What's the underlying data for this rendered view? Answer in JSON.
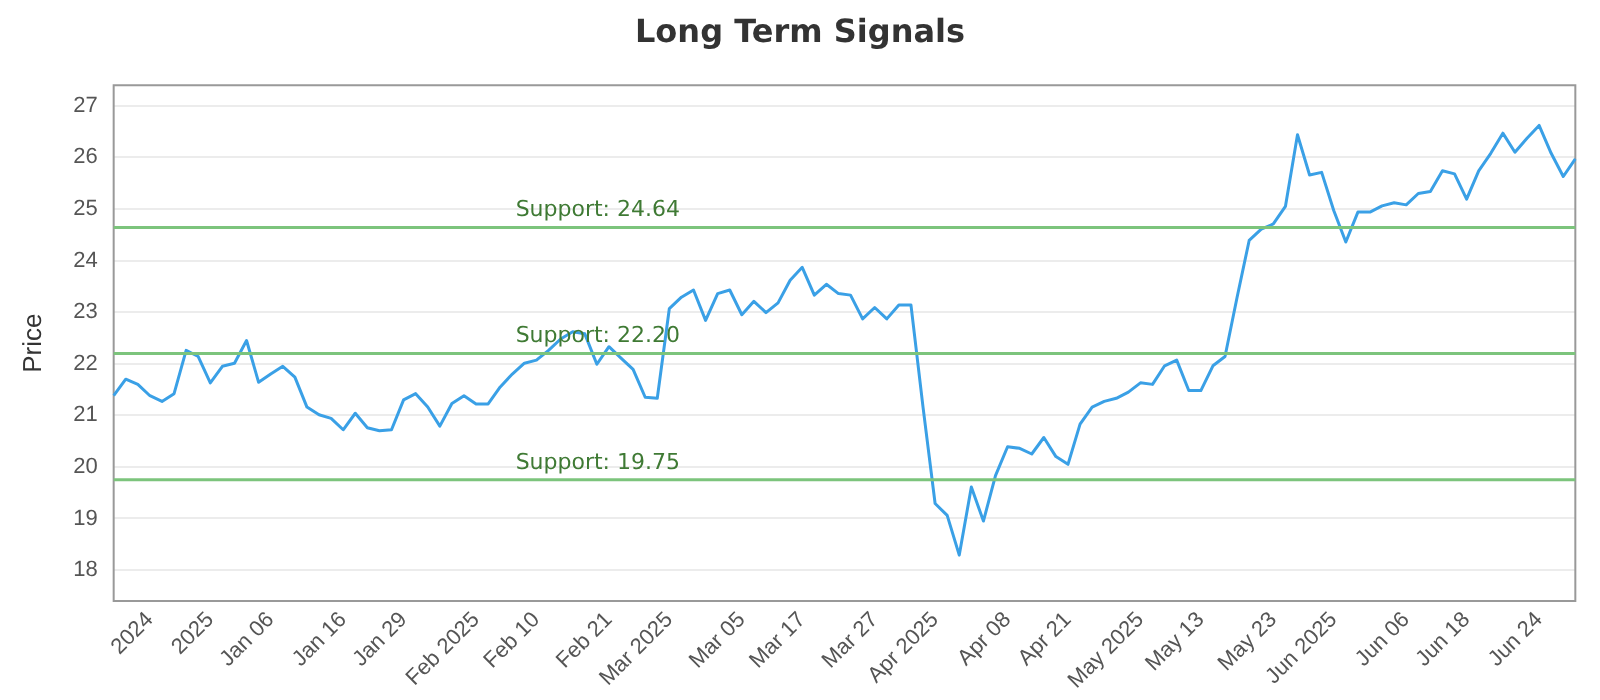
{
  "chart_data": {
    "type": "line",
    "title": "Long Term Signals",
    "ylabel": "Price",
    "categories": [
      null,
      null,
      null,
      "2024",
      null,
      null,
      null,
      null,
      "2025",
      null,
      null,
      null,
      null,
      "Jan 06",
      null,
      null,
      null,
      null,
      null,
      "Jan 16",
      null,
      null,
      null,
      null,
      "Jan 29",
      null,
      null,
      null,
      null,
      null,
      "Feb 2025",
      null,
      null,
      null,
      null,
      "Feb 10",
      null,
      null,
      null,
      null,
      null,
      "Feb 21",
      null,
      null,
      null,
      null,
      "Mar 2025",
      null,
      null,
      null,
      null,
      null,
      "Mar 05",
      null,
      null,
      null,
      null,
      "Mar 17",
      null,
      null,
      null,
      null,
      null,
      "Mar 27",
      null,
      null,
      null,
      null,
      "Apr 2025",
      null,
      null,
      null,
      null,
      null,
      "Apr 08",
      null,
      null,
      null,
      null,
      "Apr 21",
      null,
      null,
      null,
      null,
      null,
      "May 2025",
      null,
      null,
      null,
      null,
      "May 13",
      null,
      null,
      null,
      null,
      null,
      "May 23",
      null,
      null,
      null,
      null,
      "Jun 2025",
      null,
      null,
      null,
      null,
      null,
      "Jun 06",
      null,
      null,
      null,
      null,
      "Jun 18",
      null,
      null,
      null,
      null,
      null,
      "Jun 24",
      null,
      null,
      null
    ],
    "series": [
      {
        "color": "#3aa0e6",
        "values": [
          21.38,
          21.7,
          21.6,
          21.38,
          21.27,
          21.42,
          22.26,
          22.14,
          21.63,
          21.95,
          22.01,
          22.45,
          21.64,
          21.8,
          21.95,
          21.74,
          21.16,
          21.01,
          20.94,
          20.72,
          21.04,
          20.76,
          20.7,
          20.72,
          21.3,
          21.42,
          21.16,
          20.79,
          21.23,
          21.38,
          21.22,
          21.22,
          21.55,
          21.8,
          22.01,
          22.07,
          22.26,
          22.48,
          22.62,
          22.58,
          21.99,
          22.33,
          22.11,
          21.89,
          21.35,
          21.33,
          23.07,
          23.29,
          23.43,
          22.84,
          23.36,
          23.43,
          22.95,
          23.21,
          22.99,
          23.18,
          23.62,
          23.87,
          23.33,
          23.54,
          23.36,
          23.33,
          22.87,
          23.09,
          22.87,
          23.14,
          23.14,
          21.16,
          19.29,
          19.06,
          18.29,
          19.61,
          18.95,
          19.83,
          20.39,
          20.36,
          20.25,
          20.57,
          20.2,
          20.05,
          20.83,
          21.16,
          21.27,
          21.33,
          21.45,
          21.63,
          21.6,
          21.96,
          22.07,
          21.48,
          21.48,
          21.96,
          22.14,
          23.29,
          24.39,
          24.61,
          24.71,
          25.05,
          26.44,
          25.66,
          25.71,
          24.97,
          24.36,
          24.94,
          24.94,
          25.06,
          25.12,
          25.08,
          25.3,
          25.34,
          25.74,
          25.68,
          25.19,
          25.74,
          26.08,
          26.47,
          26.1,
          26.37,
          26.62,
          26.08,
          25.63,
          25.97
        ]
      }
    ],
    "ylim": [
      17.4,
      27.4
    ],
    "yticks": [
      18,
      19,
      20,
      21,
      22,
      23,
      24,
      25,
      26,
      27
    ],
    "ref_lines": [
      {
        "axis": "y",
        "value": 24.64,
        "label": "Support: 24.64",
        "color": "#7cc47c"
      },
      {
        "axis": "y",
        "value": 22.2,
        "label": "Support: 22.20",
        "color": "#7cc47c"
      },
      {
        "axis": "y",
        "value": 19.75,
        "label": "Support: 19.75",
        "color": "#7cc47c"
      }
    ],
    "grid": "y",
    "legend": false,
    "marker": "none",
    "line_style": "solid"
  }
}
